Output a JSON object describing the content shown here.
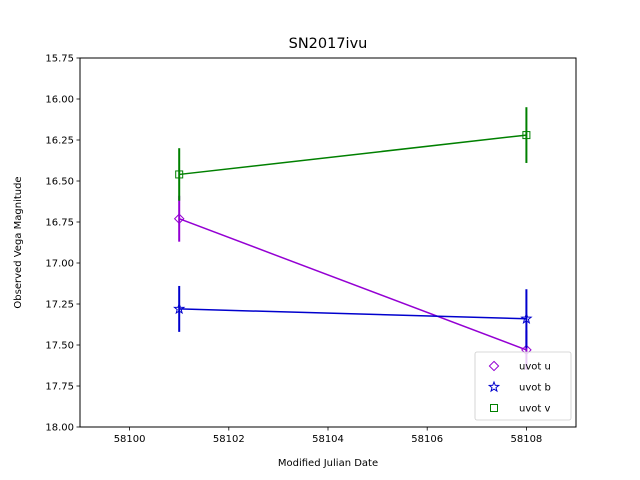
{
  "chart_data": {
    "type": "scatter",
    "title": "SN2017ivu",
    "xlabel": "Modified Julian Date",
    "ylabel": "Observed Vega Magnitude",
    "xlim": [
      58099,
      58109
    ],
    "ylim": [
      18.0,
      15.75
    ],
    "y_inverted": true,
    "xticks": [
      "58100",
      "58102",
      "58104",
      "58106",
      "58108"
    ],
    "yticks": [
      "15.75",
      "16.00",
      "16.25",
      "16.50",
      "16.75",
      "17.00",
      "17.25",
      "17.50",
      "17.75",
      "18.00"
    ],
    "grid": false,
    "legend_position": "lower-right",
    "series": [
      {
        "name": "uvot u",
        "marker": "diamond",
        "color": "#9400d3",
        "x": [
          58101,
          58108
        ],
        "y": [
          16.73,
          17.53
        ],
        "yerr": [
          0.14,
          0.12
        ]
      },
      {
        "name": "uvot b",
        "marker": "star",
        "color": "#0000cd",
        "x": [
          58101,
          58108
        ],
        "y": [
          17.28,
          17.34
        ],
        "yerr": [
          0.14,
          0.18
        ]
      },
      {
        "name": "uvot v",
        "marker": "square",
        "color": "#008000",
        "x": [
          58101,
          58108
        ],
        "y": [
          16.46,
          16.22
        ],
        "yerr": [
          0.16,
          0.17
        ]
      }
    ]
  }
}
